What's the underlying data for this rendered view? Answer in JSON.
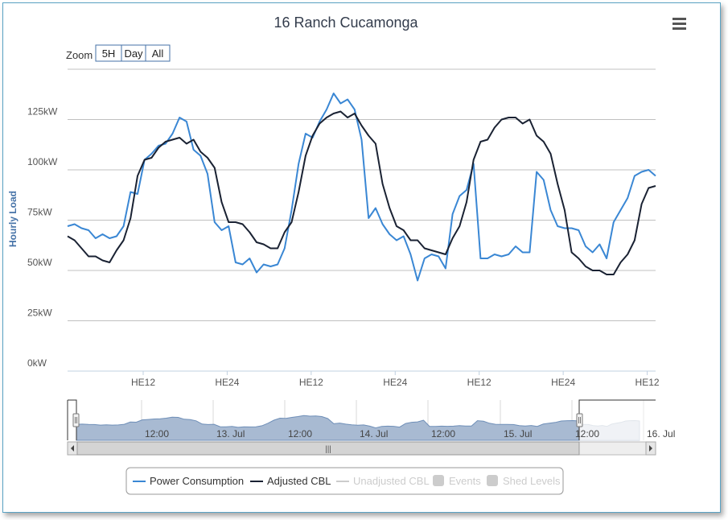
{
  "title": "16 Ranch Cucamonga",
  "zoom": {
    "label": "Zoom",
    "buttons": [
      "5H",
      "Day",
      "All"
    ]
  },
  "menu_icon": "hamburger-menu-icon",
  "scrollbar_grip": "|||",
  "chart_data": {
    "type": "line",
    "title": "16 Ranch Cucamonga",
    "ylabel": "Hourly Load",
    "ylim": [
      0,
      150
    ],
    "yticks": [
      0,
      25,
      50,
      75,
      100,
      125
    ],
    "ytick_labels": [
      "0kW",
      "25kW",
      "50kW",
      "75kW",
      "100kW",
      "125kW"
    ],
    "xlim": [
      0,
      70
    ],
    "xticks": [
      {
        "x": 9,
        "label": "HE12"
      },
      {
        "x": 19,
        "label": "HE24"
      },
      {
        "x": 29,
        "label": "HE12"
      },
      {
        "x": 39,
        "label": "HE24"
      },
      {
        "x": 49,
        "label": "HE12"
      },
      {
        "x": 59,
        "label": "HE24"
      },
      {
        "x": 69,
        "label": "HE12"
      }
    ],
    "legend_position": "bottom-center",
    "grid": true,
    "series": [
      {
        "name": "Power Consumption",
        "color": "#3a87d4",
        "values": [
          72,
          73,
          71,
          70,
          66,
          68,
          66,
          67,
          72,
          89,
          88,
          105,
          108,
          112,
          113,
          118,
          126,
          124,
          110,
          107,
          98,
          74,
          70,
          72,
          54,
          53,
          56,
          49,
          53,
          52,
          53,
          61,
          80,
          103,
          118,
          116,
          124,
          130,
          138,
          133,
          135,
          130,
          115,
          76,
          81,
          73,
          68,
          65,
          67,
          58,
          45,
          56,
          58,
          57,
          51,
          78,
          87,
          90,
          103,
          56,
          56,
          58,
          57,
          58,
          62,
          59,
          59,
          99,
          95,
          80,
          72,
          71,
          71,
          70,
          62,
          59,
          63,
          56,
          74,
          80,
          86,
          97,
          99,
          100,
          97
        ]
      },
      {
        "name": "Adjusted CBL",
        "color": "#1a2233",
        "values": [
          67,
          65,
          61,
          57,
          57,
          55,
          54,
          60,
          65,
          76,
          97,
          105,
          106,
          111,
          114,
          115,
          116,
          113,
          115,
          109,
          106,
          101,
          84,
          74,
          74,
          73,
          69,
          64,
          63,
          61,
          61,
          69,
          74,
          89,
          107,
          117,
          123,
          126,
          128,
          129,
          126,
          128,
          122,
          117,
          113,
          93,
          81,
          72,
          70,
          65,
          65,
          61,
          60,
          59,
          58,
          66,
          72,
          84,
          105,
          114,
          115,
          121,
          125,
          126,
          126,
          123,
          125,
          117,
          114,
          108,
          93,
          80,
          59,
          56,
          52,
          50,
          50,
          48,
          48,
          54,
          58,
          65,
          83,
          91,
          92
        ]
      },
      {
        "name": "Unadjusted CBL",
        "color": "#cccccc",
        "values": []
      },
      {
        "name": "Events",
        "color": "#cccccc",
        "values": []
      },
      {
        "name": "Shed Levels",
        "color": "#cccccc",
        "values": []
      }
    ]
  },
  "navigator": {
    "tick_labels": [
      "12:00",
      "13. Jul",
      "12:00",
      "14. Jul",
      "12:00",
      "15. Jul",
      "12:00",
      "16. Jul"
    ]
  }
}
